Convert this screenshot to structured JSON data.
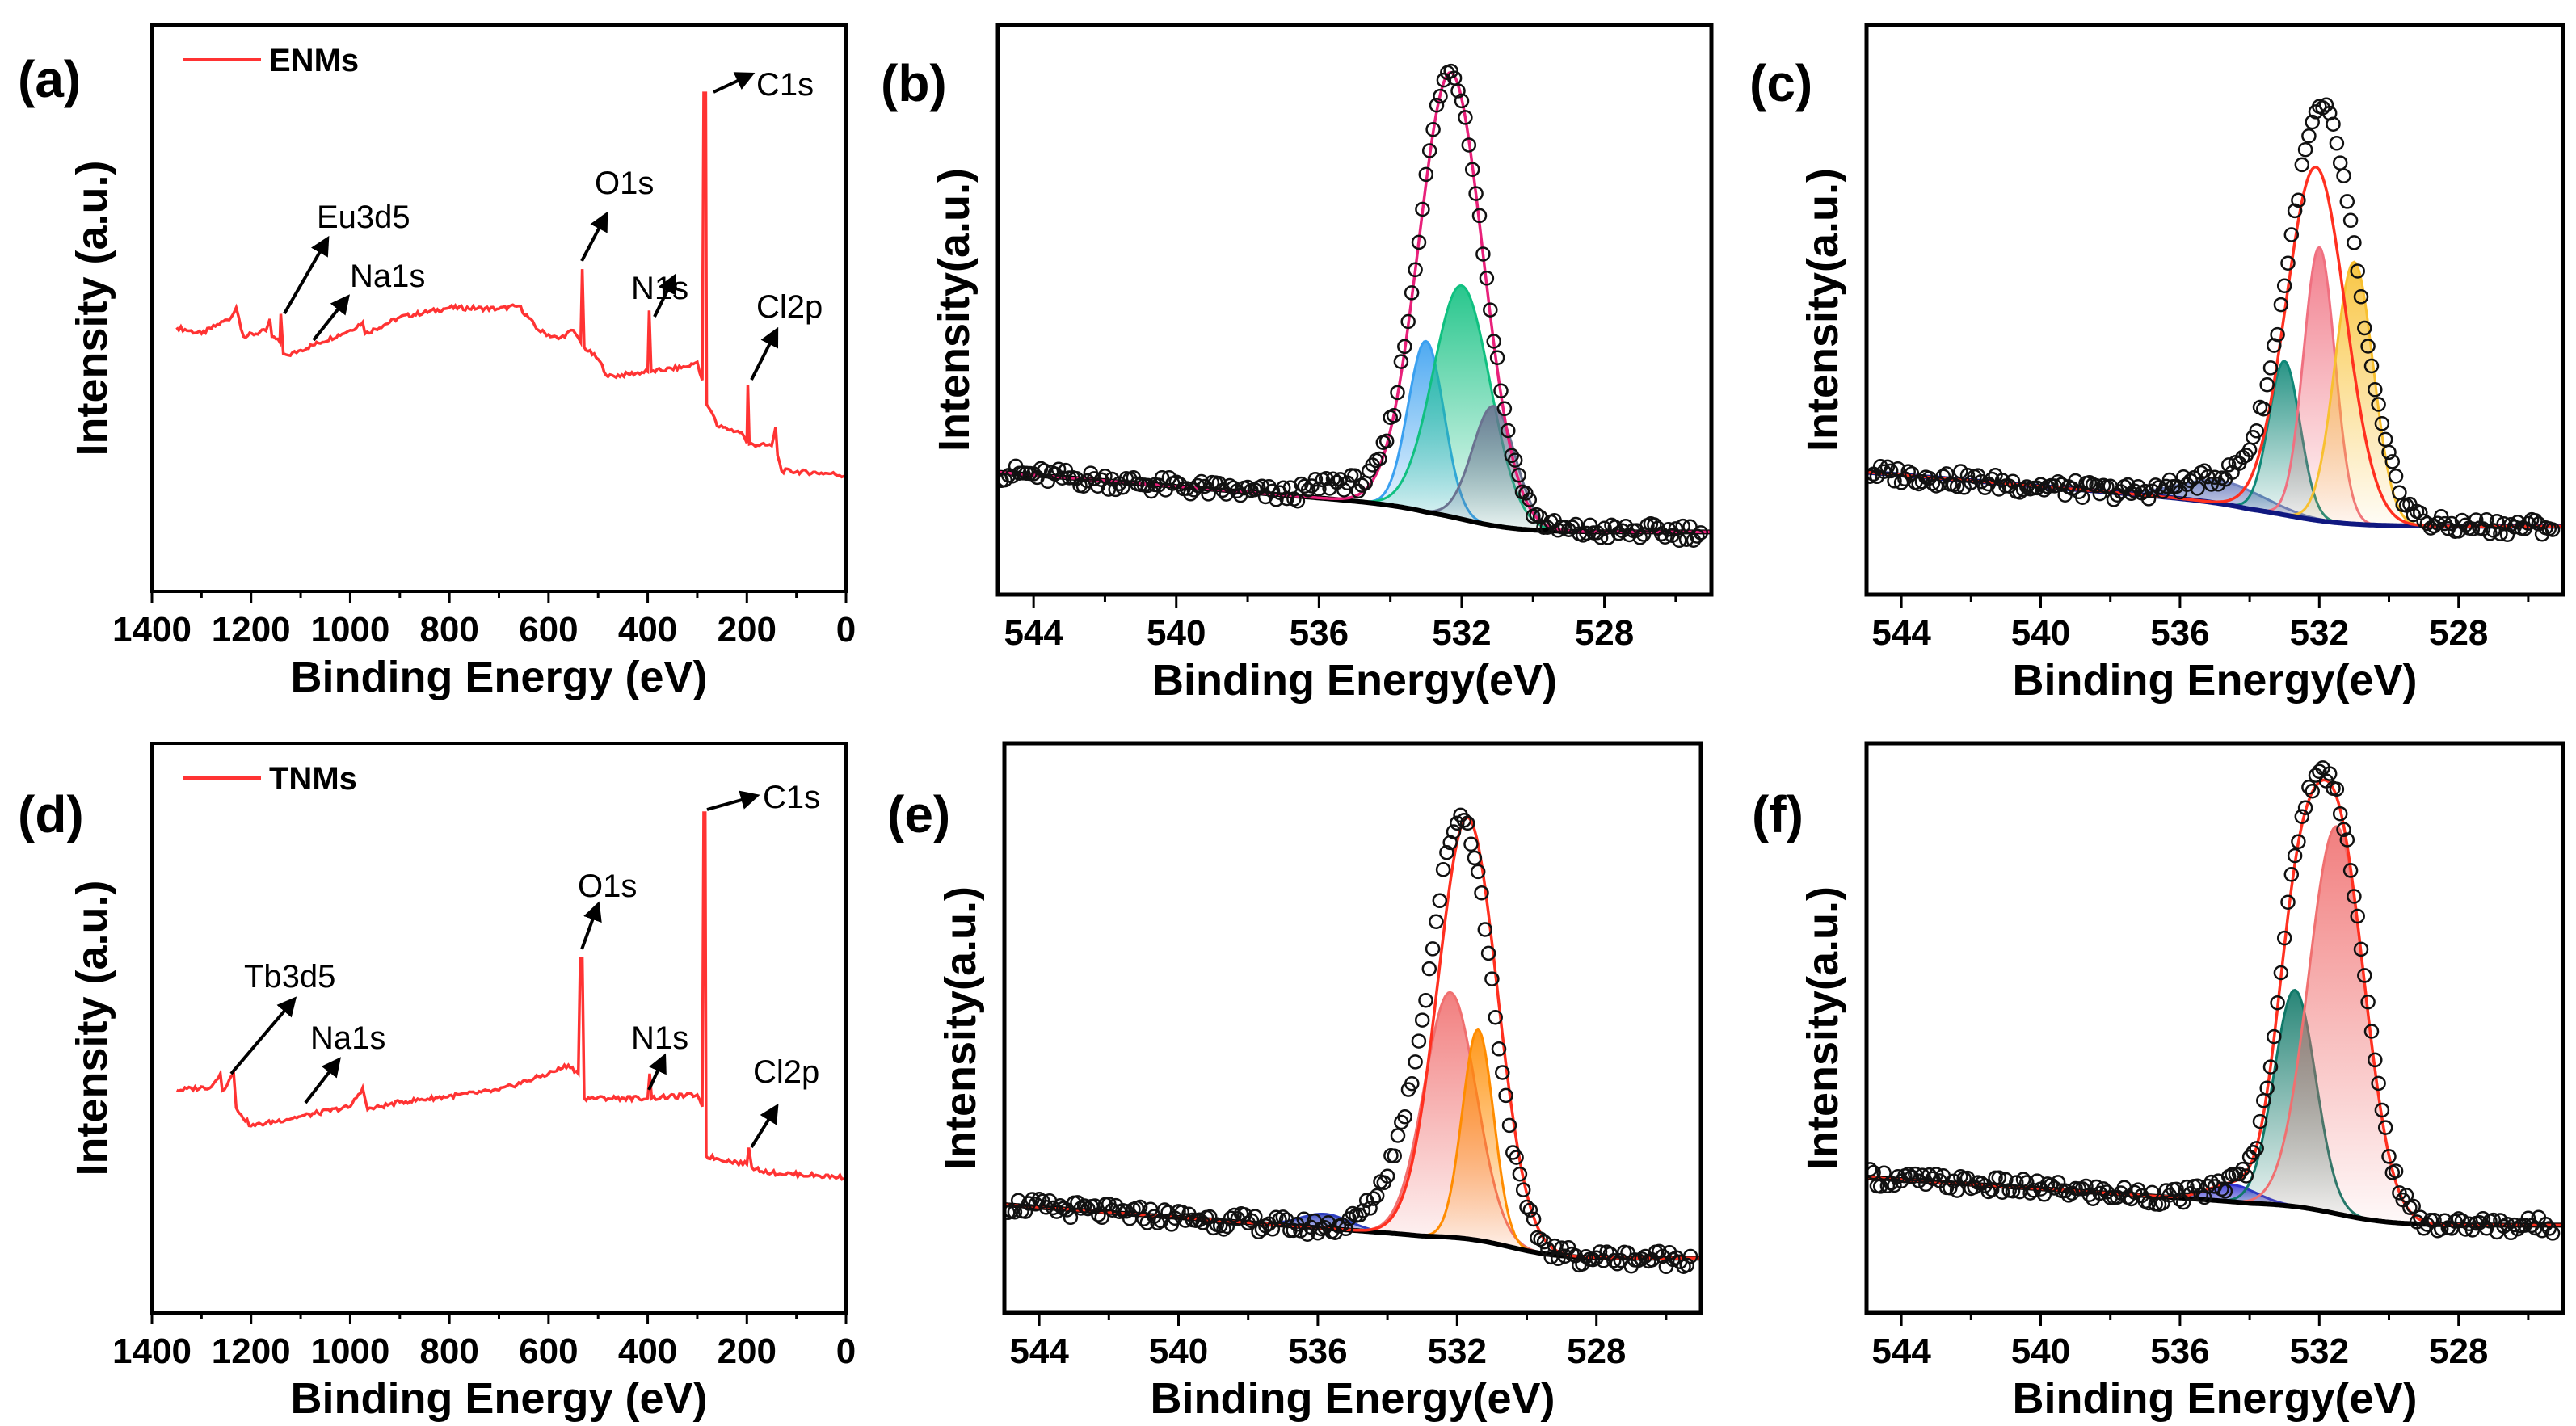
{
  "chart_data": [
    {
      "panel_label": "(a)",
      "type": "line",
      "title": "",
      "xlabel": "Binding Energy (eV)",
      "ylabel": "Intensity (a.u.)",
      "xlim": [
        1400,
        0
      ],
      "ylim": [
        0,
        100
      ],
      "xticks": [
        "1400",
        "1200",
        "1000",
        "800",
        "600",
        "400",
        "200",
        "0"
      ],
      "legend": {
        "label": "ENMs",
        "placement": "top-left"
      },
      "annotations": [
        "C1s",
        "O1s",
        "Eu3d5",
        "Na1s",
        "N1s",
        "Cl2p"
      ],
      "series": [
        {
          "name": "ENMs",
          "color": "#ff3333",
          "points": [
            [
              1350,
              46.6
            ],
            [
              1300,
              45.5
            ],
            [
              1240,
              48.4
            ],
            [
              1230,
              50.1
            ],
            [
              1215,
              45
            ],
            [
              1170,
              46
            ],
            [
              1162,
              48.1
            ],
            [
              1158,
              45
            ],
            [
              1142,
              44
            ],
            [
              1140,
              49
            ],
            [
              1135,
              42
            ],
            [
              1125,
              41.7
            ],
            [
              1100,
              42.6
            ],
            [
              1000,
              46.1
            ],
            [
              975,
              47.5
            ],
            [
              970,
              45.5
            ],
            [
              900,
              48.4
            ],
            [
              800,
              50.1
            ],
            [
              700,
              49.9
            ],
            [
              660,
              50.4
            ],
            [
              620,
              46.1
            ],
            [
              580,
              44.6
            ],
            [
              550,
              46.1
            ],
            [
              535,
              44
            ],
            [
              532,
              56.9
            ],
            [
              528,
              43.1
            ],
            [
              500,
              41
            ],
            [
              480,
              37.9
            ],
            [
              400,
              38.8
            ],
            [
              397,
              49.6
            ],
            [
              393,
              38.8
            ],
            [
              320,
              39.7
            ],
            [
              300,
              40.5
            ],
            [
              290,
              37.3
            ],
            [
              287,
              88
            ],
            [
              283,
              88
            ],
            [
              281,
              33
            ],
            [
              270,
              31.5
            ],
            [
              260,
              29.2
            ],
            [
              210,
              28
            ],
            [
              200,
              26.2
            ],
            [
              198,
              36.4
            ],
            [
              195,
              26
            ],
            [
              150,
              25.7
            ],
            [
              142,
              29
            ],
            [
              138,
              24
            ],
            [
              130,
              21.3
            ],
            [
              30,
              20.8
            ],
            [
              0,
              20.4
            ]
          ]
        }
      ]
    },
    {
      "panel_label": "(b)",
      "type": "line",
      "title": "",
      "xlabel": "Binding Energy(eV)",
      "ylabel": "Intensity(a.u.)",
      "xlim": [
        545,
        525
      ],
      "ylim": [
        0,
        100
      ],
      "xticks": [
        "544",
        "540",
        "536",
        "532",
        "528"
      ],
      "background": {
        "low": 11,
        "step": 4.5,
        "x0": 532,
        "w": 0.8,
        "slope": 0.5,
        "x1": 533,
        "color": "#000000"
      },
      "components": [
        {
          "center": 533.0,
          "height": 30,
          "sigma": 0.5,
          "color": "#3aa0f0"
        },
        {
          "center": 532.0,
          "height": 41,
          "sigma": 0.8,
          "color": "#10c080"
        },
        {
          "center": 531.1,
          "height": 21,
          "sigma": 0.6,
          "color": "#6a7290"
        }
      ],
      "envelope": {
        "color": "#e8207a",
        "peaks": [
          {
            "center": 532.3,
            "height": 78,
            "sigma": 0.9
          }
        ]
      },
      "data": {
        "peaks": [
          {
            "center": 532.3,
            "height": 78,
            "sigma": 0.92
          },
          {
            "center": 535.5,
            "height": 3,
            "sigma": 0.6
          }
        ]
      }
    },
    {
      "panel_label": "(c)",
      "type": "line",
      "title": "",
      "xlabel": "Binding Energy(eV)",
      "ylabel": "Intensity(a.u.)",
      "xlim": [
        545,
        525
      ],
      "ylim": [
        0,
        100
      ],
      "xticks": [
        "544",
        "540",
        "536",
        "532",
        "528"
      ],
      "background": {
        "low": 12,
        "step": 4,
        "x0": 533,
        "w": 0.9,
        "slope": 0.5,
        "x1": 534,
        "color": "#101880"
      },
      "components": [
        {
          "center": 534.8,
          "height": 4,
          "sigma": 1.2,
          "color": "#7080c0"
        },
        {
          "center": 533.0,
          "height": 27,
          "sigma": 0.45,
          "color": "#108878"
        },
        {
          "center": 532.0,
          "height": 48,
          "sigma": 0.45,
          "color": "#f07080"
        },
        {
          "center": 531.0,
          "height": 46,
          "sigma": 0.55,
          "color": "#f8c030"
        }
      ],
      "envelope": {
        "color": "#ff3020",
        "peaks": [
          {
            "center": 532.1,
            "height": 62,
            "sigma": 0.85
          }
        ]
      },
      "data": {
        "peaks": [
          {
            "center": 531.9,
            "height": 72,
            "sigma": 1.0
          },
          {
            "center": 534.8,
            "height": 4,
            "sigma": 1.2
          }
        ]
      }
    },
    {
      "panel_label": "(d)",
      "type": "line",
      "title": "",
      "xlabel": "Binding Energy (eV)",
      "ylabel": "Intensity (a.u.)",
      "xlim": [
        1400,
        0
      ],
      "ylim": [
        0,
        100
      ],
      "xticks": [
        "1400",
        "1200",
        "1000",
        "800",
        "600",
        "400",
        "200",
        "0"
      ],
      "legend": {
        "label": "TNMs",
        "placement": "top-left"
      },
      "annotations": [
        "C1s",
        "O1s",
        "Tb3d5",
        "Na1s",
        "N1s",
        "Cl2p"
      ],
      "series": [
        {
          "name": "TNMs",
          "color": "#ff3333",
          "points": [
            [
              1350,
              39.1
            ],
            [
              1280,
              39.7
            ],
            [
              1262,
              42
            ],
            [
              1258,
              39
            ],
            [
              1235,
              42
            ],
            [
              1230,
              36
            ],
            [
              1220,
              34.8
            ],
            [
              1200,
              32.8
            ],
            [
              1100,
              34.5
            ],
            [
              1000,
              36.2
            ],
            [
              975,
              39.5
            ],
            [
              965,
              35.7
            ],
            [
              900,
              37
            ],
            [
              700,
              39.1
            ],
            [
              600,
              42
            ],
            [
              560,
              43.5
            ],
            [
              540,
              42
            ],
            [
              536,
              62.3
            ],
            [
              532,
              62.3
            ],
            [
              528,
              37.7
            ],
            [
              400,
              37.7
            ],
            [
              396,
              42
            ],
            [
              392,
              37.7
            ],
            [
              300,
              38.3
            ],
            [
              290,
              36.2
            ],
            [
              287,
              87.8
            ],
            [
              284,
              87.8
            ],
            [
              282,
              27.5
            ],
            [
              200,
              26.1
            ],
            [
              196,
              29
            ],
            [
              190,
              25.5
            ],
            [
              150,
              24.6
            ],
            [
              0,
              23.8
            ]
          ]
        }
      ]
    },
    {
      "panel_label": "(e)",
      "type": "line",
      "title": "",
      "xlabel": "Binding Energy(eV)",
      "ylabel": "Intensity(a.u.)",
      "xlim": [
        545,
        525
      ],
      "ylim": [
        0,
        100
      ],
      "xticks": [
        "544",
        "540",
        "536",
        "532",
        "528"
      ],
      "background": {
        "low": 9.6,
        "step": 4,
        "x0": 530.5,
        "w": 0.7,
        "slope": 0.45,
        "x1": 533,
        "color": "#000000"
      },
      "components": [
        {
          "center": 535.8,
          "height": 2.5,
          "sigma": 0.7,
          "color": "#3040c0"
        },
        {
          "center": 532.2,
          "height": 43,
          "sigma": 0.75,
          "color": "#f07070"
        },
        {
          "center": 531.4,
          "height": 37,
          "sigma": 0.45,
          "color": "#ff8c00"
        }
      ],
      "envelope": {
        "color": "#ff3020",
        "peaks": [
          {
            "center": 531.7,
            "height": 74,
            "sigma": 0.85
          }
        ]
      },
      "data": {
        "peaks": [
          {
            "center": 531.8,
            "height": 70,
            "sigma": 0.85
          },
          {
            "center": 533.2,
            "height": 13,
            "sigma": 0.9
          }
        ]
      }
    },
    {
      "panel_label": "(f)",
      "type": "line",
      "title": "",
      "xlabel": "Binding Energy(eV)",
      "ylabel": "Intensity(a.u.)",
      "xlim": [
        545,
        525
      ],
      "ylim": [
        0,
        100
      ],
      "xticks": [
        "544",
        "540",
        "536",
        "532",
        "528"
      ],
      "background": {
        "low": 15.4,
        "step": 4,
        "x0": 531.5,
        "w": 0.8,
        "slope": 0.4,
        "x1": 534,
        "color": "#000000"
      },
      "components": [
        {
          "center": 534.5,
          "height": 3,
          "sigma": 0.7,
          "color": "#3030d0"
        },
        {
          "center": 532.7,
          "height": 38,
          "sigma": 0.6,
          "color": "#107868"
        },
        {
          "center": 531.5,
          "height": 68,
          "sigma": 0.8,
          "color": "#f07070"
        }
      ],
      "envelope": {
        "color": "#ff3020",
        "peaks": [
          {
            "center": 531.5,
            "height": 68,
            "sigma": 0.8
          },
          {
            "center": 532.7,
            "height": 38,
            "sigma": 0.6
          },
          {
            "center": 534.5,
            "height": 3,
            "sigma": 0.7
          }
        ]
      },
      "data": {
        "peaks": [
          {
            "center": 531.5,
            "height": 68,
            "sigma": 0.82
          },
          {
            "center": 532.7,
            "height": 38,
            "sigma": 0.62
          },
          {
            "center": 534.5,
            "height": 3,
            "sigma": 0.7
          }
        ]
      }
    }
  ]
}
